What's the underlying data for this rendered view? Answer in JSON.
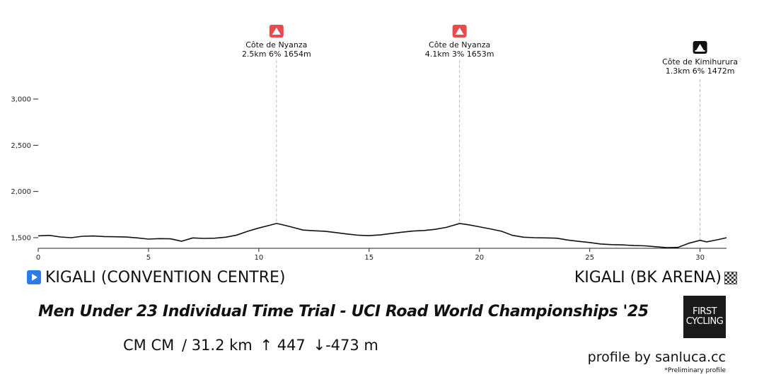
{
  "chart_data": {
    "type": "area",
    "xlim": [
      0,
      31.2
    ],
    "ylim": [
      1400,
      3000
    ],
    "x_ticks": [
      0,
      5,
      10,
      15,
      20,
      25,
      30
    ],
    "y_ticks": [
      1500,
      2000,
      2500,
      3000
    ],
    "y_tick_labels": [
      "1,500",
      "2,000",
      "2,500",
      "3,000"
    ],
    "grid": false,
    "series": [
      {
        "points": [
          [
            0,
            1520
          ],
          [
            0.5,
            1525
          ],
          [
            1,
            1508
          ],
          [
            1.5,
            1500
          ],
          [
            2,
            1515
          ],
          [
            2.5,
            1518
          ],
          [
            3,
            1512
          ],
          [
            3.5,
            1510
          ],
          [
            4,
            1507
          ],
          [
            4.5,
            1498
          ],
          [
            5,
            1485
          ],
          [
            5.5,
            1490
          ],
          [
            6,
            1488
          ],
          [
            6.5,
            1462
          ],
          [
            7,
            1498
          ],
          [
            7.5,
            1492
          ],
          [
            8,
            1495
          ],
          [
            8.5,
            1505
          ],
          [
            9,
            1528
          ],
          [
            9.5,
            1570
          ],
          [
            10,
            1605
          ],
          [
            10.5,
            1635
          ],
          [
            10.8,
            1654
          ],
          [
            11,
            1645
          ],
          [
            11.5,
            1615
          ],
          [
            12,
            1583
          ],
          [
            12.5,
            1575
          ],
          [
            13,
            1570
          ],
          [
            13.5,
            1555
          ],
          [
            14,
            1540
          ],
          [
            14.5,
            1527
          ],
          [
            15,
            1522
          ],
          [
            15.5,
            1530
          ],
          [
            16,
            1545
          ],
          [
            16.5,
            1560
          ],
          [
            17,
            1572
          ],
          [
            17.5,
            1578
          ],
          [
            18,
            1590
          ],
          [
            18.5,
            1612
          ],
          [
            19.1,
            1653
          ],
          [
            19.5,
            1640
          ],
          [
            20,
            1618
          ],
          [
            20.5,
            1595
          ],
          [
            21,
            1570
          ],
          [
            21.5,
            1525
          ],
          [
            22,
            1505
          ],
          [
            22.5,
            1500
          ],
          [
            23,
            1498
          ],
          [
            23.5,
            1495
          ],
          [
            24,
            1475
          ],
          [
            24.5,
            1460
          ],
          [
            25,
            1448
          ],
          [
            25.5,
            1432
          ],
          [
            26,
            1425
          ],
          [
            26.5,
            1422
          ],
          [
            27,
            1415
          ],
          [
            27.5,
            1412
          ],
          [
            28,
            1402
          ],
          [
            28.5,
            1392
          ],
          [
            29,
            1395
          ],
          [
            29.5,
            1440
          ],
          [
            30,
            1472
          ],
          [
            30.3,
            1455
          ],
          [
            30.8,
            1478
          ],
          [
            31.2,
            1500
          ]
        ]
      }
    ],
    "climbs": [
      {
        "x": 10.8,
        "name": "Côte de Nyanza",
        "detail": "2.5km 6% 1654m",
        "category_color": "#e84b4b"
      },
      {
        "x": 19.1,
        "name": "Côte de Nyanza",
        "detail": "4.1km 3% 1653m",
        "category_color": "#e84b4b"
      },
      {
        "x": 30.0,
        "name": "Côte de Kimihurura",
        "detail": "1.3km 6% 1472m",
        "category_color": "#111111"
      }
    ],
    "colors": {
      "line": "#111111",
      "axis": "#222222",
      "marker_line": "#bbbbbb"
    }
  },
  "route": {
    "start": "KIGALI (CONVENTION CENTRE)",
    "finish": "KIGALI (BK ARENA)",
    "start_icon": "play-icon",
    "finish_icon": "checkered-flag-icon"
  },
  "race": {
    "title": "Men Under 23 Individual Time Trial - UCI Road World Championships '25",
    "type_label": "CM CM",
    "distance": "/ 31.2 km",
    "ascent": "↑ 447",
    "descent": "↓-473 m"
  },
  "logo": {
    "line1": "FIRST",
    "line2": "CYCLING"
  },
  "credit": "profile by sanluca.cc",
  "note": "*Preliminary profile"
}
